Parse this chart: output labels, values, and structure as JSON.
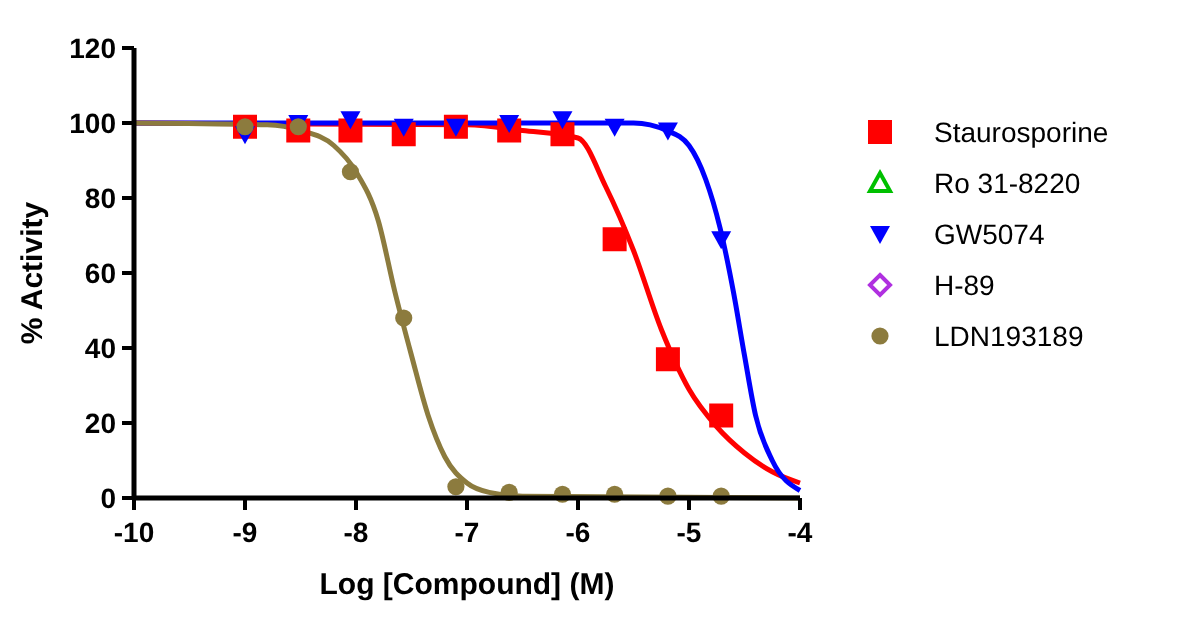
{
  "chart_data": {
    "type": "scatter",
    "xlabel": "Log [Compound] (M)",
    "ylabel": "% Activity",
    "xlim": [
      -10,
      -4
    ],
    "xticks": [
      -10,
      -9,
      -8,
      -7,
      -6,
      -5,
      -4
    ],
    "ylim": [
      0,
      120
    ],
    "yticks": [
      0,
      20,
      40,
      60,
      80,
      100,
      120
    ],
    "grid": false,
    "legend": "right",
    "x": [
      -9,
      -8.52,
      -8.05,
      -7.57,
      -7.1,
      -6.62,
      -6.14,
      -5.67,
      -5.19,
      -4.71
    ],
    "series": [
      {
        "name": "Staurosporine",
        "color": "#ff0000",
        "marker": "square",
        "values": [
          99,
          98,
          98,
          97,
          99,
          98,
          97,
          69,
          37,
          22
        ]
      },
      {
        "name": "Ro 31-8220",
        "color": "#00c000",
        "marker": "triangle",
        "values": [
          null,
          null,
          null,
          null,
          null,
          null,
          null,
          null,
          null,
          null
        ]
      },
      {
        "name": "GW5074",
        "color": "#0000ff",
        "marker": "triangle-down",
        "values": [
          97,
          100,
          101,
          99,
          99,
          100,
          101,
          99,
          98,
          69
        ]
      },
      {
        "name": "H-89",
        "color": "#b030e0",
        "marker": "diamond",
        "values": [
          null,
          null,
          null,
          null,
          null,
          null,
          null,
          null,
          null,
          null
        ]
      },
      {
        "name": "LDN193189",
        "color": "#8c7b3e",
        "marker": "circle",
        "values": [
          99,
          99,
          87,
          48,
          3,
          1.5,
          1,
          1,
          0.5,
          0.5
        ]
      },
      {
        "type": "line",
        "color": "#ff0000",
        "x": [
          -10,
          -7,
          -6.5,
          -6,
          -5.75,
          -5.5,
          -5.25,
          -5,
          -4.75,
          -4.5,
          -4.25,
          -4
        ],
        "values": [
          100,
          99.5,
          98,
          96,
          83,
          66,
          45,
          29,
          19,
          12,
          7,
          4
        ]
      },
      {
        "type": "line",
        "color": "#0000ff",
        "x": [
          -10,
          -5.5,
          -5.2,
          -5,
          -4.85,
          -4.72,
          -4.6,
          -4.5,
          -4.4,
          -4.25,
          -4
        ],
        "values": [
          100,
          100,
          98,
          94,
          85,
          72,
          55,
          38,
          22,
          10,
          2
        ]
      },
      {
        "type": "line",
        "color": "#8c7b3e",
        "x": [
          -10,
          -8.8,
          -8.5,
          -8.2,
          -8,
          -7.8,
          -7.65,
          -7.5,
          -7.35,
          -7.2,
          -7,
          -6.8,
          -6.5,
          -4
        ],
        "values": [
          100,
          99.5,
          98,
          94,
          87,
          74,
          55,
          38,
          22,
          11,
          4,
          1.5,
          0.5,
          0
        ]
      }
    ]
  }
}
